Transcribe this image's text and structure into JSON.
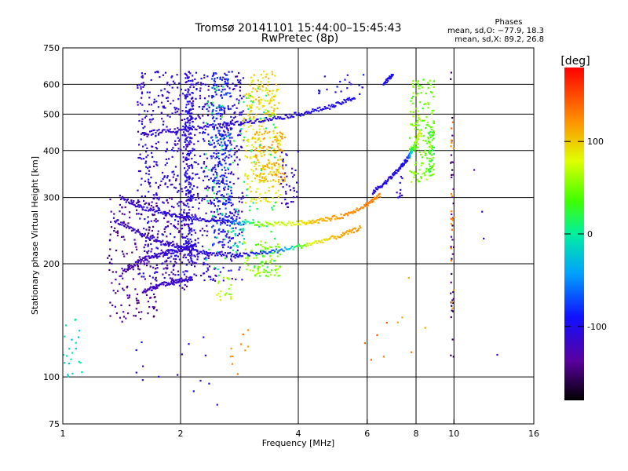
{
  "chart_data": {
    "type": "scatter",
    "title": "Tromsø 20141101 15:44:00–15:45:43",
    "subtitle": "RwPretec (8p)",
    "xlabel": "Frequency [MHz]",
    "ylabel": "Stationary phase Virtual Height [km]",
    "x_scale": "log",
    "y_scale": "log",
    "xlim": [
      1,
      16
    ],
    "ylim": [
      75,
      750
    ],
    "x_ticks": [
      1,
      2,
      4,
      6,
      8,
      10,
      16
    ],
    "y_ticks": [
      75,
      100,
      200,
      300,
      400,
      500,
      600,
      750
    ],
    "grid": true,
    "stats": {
      "heading": "Phases",
      "line_o": "mean, sd,O: −77.9, 18.3",
      "line_x": "mean, sd,X:  89.2, 26.8"
    },
    "colorbar": {
      "label": "[deg]",
      "range": [
        -180,
        180
      ],
      "ticks": [
        100,
        0,
        -100
      ],
      "colormap": "rainbow"
    },
    "traces": [
      {
        "x": [
          1.35,
          1.55,
          1.8,
          2.05,
          2.4,
          2.9,
          3.6,
          4.3,
          5.1,
          5.8
        ],
        "y": [
          262,
          242,
          228,
          220,
          212,
          211,
          217,
          226,
          237,
          250
        ],
        "phase": [
          -120,
          -115,
          -112,
          -110,
          -108,
          -100,
          -60,
          80,
          110,
          120
        ]
      },
      {
        "x": [
          1.4,
          1.6,
          1.9,
          2.2,
          2.6,
          3.2,
          3.9,
          4.5,
          5.2,
          5.9,
          6.5
        ],
        "y": [
          300,
          282,
          270,
          263,
          258,
          255,
          256,
          260,
          268,
          285,
          305
        ],
        "phase": [
          -115,
          -112,
          -110,
          -108,
          -105,
          60,
          80,
          110,
          120,
          125,
          125
        ]
      },
      {
        "x": [
          6.2,
          6.7,
          7.2,
          7.6,
          7.9,
          8.2
        ],
        "y": [
          310,
          330,
          355,
          380,
          410,
          450
        ],
        "phase": [
          -110,
          -105,
          -100,
          -95,
          40,
          90
        ]
      },
      {
        "x": [
          1.6,
          2.0,
          2.5,
          3.0,
          3.6,
          4.2,
          4.9,
          5.6
        ],
        "y": [
          445,
          455,
          465,
          478,
          490,
          505,
          525,
          555
        ],
        "phase": [
          -110,
          -110,
          -108,
          -106,
          -104,
          -100,
          -100,
          -98
        ]
      },
      {
        "x": [
          6.6,
          7.0
        ],
        "y": [
          600,
          640
        ],
        "phase": [
          -100,
          -95
        ]
      },
      {
        "x": [
          1.6,
          1.75,
          1.95,
          2.15
        ],
        "y": [
          168,
          175,
          180,
          182
        ],
        "phase": [
          -125,
          -120,
          -118,
          -115
        ]
      },
      {
        "x": [
          1.42,
          1.6,
          1.8,
          2.0,
          2.2
        ],
        "y": [
          190,
          205,
          213,
          218,
          225
        ],
        "phase": [
          -125,
          -120,
          -115,
          -110,
          -108
        ]
      }
    ],
    "clusters": [
      {
        "x": [
          1.55,
          2.9
        ],
        "y": [
          180,
          650
        ],
        "phase": -110,
        "count": 900
      },
      {
        "x": [
          2.05,
          2.15
        ],
        "y": [
          200,
          650
        ],
        "phase": -105,
        "count": 220
      },
      {
        "x": [
          2.4,
          2.7
        ],
        "y": [
          220,
          650
        ],
        "phase": -85,
        "count": 260
      },
      {
        "x": [
          1.3,
          1.75
        ],
        "y": [
          140,
          300
        ],
        "phase": -140,
        "count": 180
      },
      {
        "x": [
          1.8,
          2.1
        ],
        "y": [
          170,
          300
        ],
        "phase": -130,
        "count": 70
      },
      {
        "x": [
          2.9,
          3.6
        ],
        "y": [
          290,
          600
        ],
        "phase": 90,
        "count": 200
      },
      {
        "x": [
          3.0,
          3.5
        ],
        "y": [
          490,
          650
        ],
        "phase": 100,
        "count": 60
      },
      {
        "x": [
          2.9,
          3.6
        ],
        "y": [
          185,
          230
        ],
        "phase": 55,
        "count": 90
      },
      {
        "x": [
          3.1,
          3.7
        ],
        "y": [
          330,
          450
        ],
        "phase": 110,
        "count": 120
      },
      {
        "x": [
          7.7,
          8.9
        ],
        "y": [
          330,
          620
        ],
        "phase": 50,
        "count": 160
      },
      {
        "x": [
          8.6,
          8.9
        ],
        "y": [
          350,
          450
        ],
        "phase": 30,
        "count": 40
      },
      {
        "x": [
          2.45,
          2.7
        ],
        "y": [
          160,
          185
        ],
        "phase": 70,
        "count": 20
      },
      {
        "x": [
          2.7,
          2.95
        ],
        "y": [
          215,
          260
        ],
        "phase": -10,
        "count": 20
      },
      {
        "x": [
          2.3,
          3.5
        ],
        "y": [
          180,
          600
        ],
        "phase": 10,
        "count": 120
      },
      {
        "x": [
          3.6,
          4.0
        ],
        "y": [
          280,
          400
        ],
        "phase": -110,
        "count": 40
      },
      {
        "x": [
          1.0,
          1.12
        ],
        "y": [
          100,
          145
        ],
        "phase": -10,
        "count": 22
      },
      {
        "x": [
          4.5,
          6.0
        ],
        "y": [
          560,
          640
        ],
        "phase": -100,
        "count": 20
      },
      {
        "x": [
          7.0,
          7.4
        ],
        "y": [
          300,
          345
        ],
        "phase": -110,
        "count": 10
      },
      {
        "x": [
          9.8,
          10.0
        ],
        "y": [
          110,
          650
        ],
        "phase": -150,
        "count": 40
      },
      {
        "x": [
          9.8,
          10.0
        ],
        "y": [
          150,
          650
        ],
        "phase": 130,
        "count": 20
      },
      {
        "x": [
          1.5,
          2.5
        ],
        "y": [
          78,
          130
        ],
        "phase": -105,
        "count": 15
      },
      {
        "x": [
          2.5,
          3.0
        ],
        "y": [
          100,
          135
        ],
        "phase": 130,
        "count": 10
      },
      {
        "x": [
          5.5,
          8.5
        ],
        "y": [
          110,
          190
        ],
        "phase": 130,
        "count": 10
      },
      {
        "x": [
          10.5,
          13.5
        ],
        "y": [
          110,
          610
        ],
        "phase": -120,
        "count": 4
      }
    ]
  }
}
